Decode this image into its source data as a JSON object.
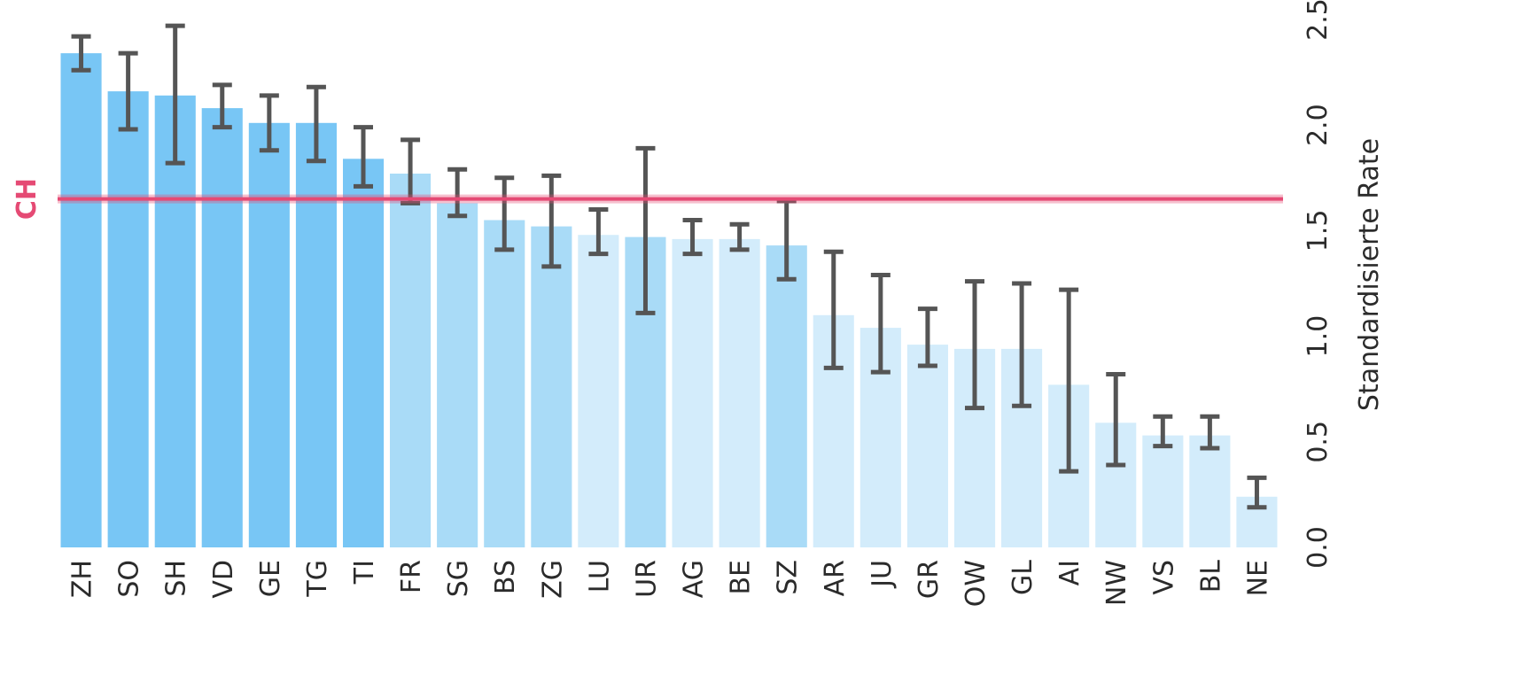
{
  "chart_data": {
    "type": "bar",
    "ylabel": "Standardisierte Rate",
    "ylim": [
      0,
      2.5
    ],
    "yticks": [
      "0.0",
      "0.5",
      "1.0",
      "1.5",
      "2.0",
      "2.5"
    ],
    "y_axis_position": "right",
    "categories": [
      "ZH",
      "SO",
      "SH",
      "VD",
      "GE",
      "TG",
      "TI",
      "FR",
      "SG",
      "BS",
      "ZG",
      "LU",
      "UR",
      "AG",
      "BE",
      "SZ",
      "AR",
      "JU",
      "GR",
      "OW",
      "GL",
      "AI",
      "NW",
      "VS",
      "BL",
      "NE"
    ],
    "values": [
      2.34,
      2.16,
      2.14,
      2.08,
      2.01,
      2.01,
      1.84,
      1.77,
      1.63,
      1.55,
      1.52,
      1.48,
      1.47,
      1.46,
      1.46,
      1.43,
      1.1,
      1.04,
      0.96,
      0.94,
      0.94,
      0.77,
      0.59,
      0.53,
      0.53,
      0.24
    ],
    "error_low": [
      2.26,
      1.98,
      1.82,
      1.99,
      1.88,
      1.83,
      1.71,
      1.63,
      1.57,
      1.41,
      1.33,
      1.39,
      1.11,
      1.39,
      1.41,
      1.27,
      0.85,
      0.83,
      0.86,
      0.66,
      0.67,
      0.36,
      0.39,
      0.48,
      0.47,
      0.19
    ],
    "error_high": [
      2.42,
      2.34,
      2.47,
      2.19,
      2.14,
      2.18,
      1.99,
      1.93,
      1.79,
      1.75,
      1.76,
      1.6,
      1.89,
      1.55,
      1.53,
      1.64,
      1.4,
      1.29,
      1.13,
      1.26,
      1.25,
      1.22,
      0.82,
      0.62,
      0.62,
      0.33
    ],
    "bar_shade": [
      "dark",
      "dark",
      "dark",
      "dark",
      "dark",
      "dark",
      "dark",
      "medium",
      "medium",
      "medium",
      "medium",
      "light",
      "medium",
      "light",
      "light",
      "medium",
      "light",
      "light",
      "light",
      "light",
      "light",
      "light",
      "light",
      "light",
      "light",
      "light"
    ],
    "reference_line": {
      "label": "CH",
      "value": 1.65
    },
    "colors": {
      "dark": "#78c6f5",
      "medium": "#a9dbf7",
      "light": "#d3ecfb",
      "error_bar": "#555555",
      "reference": "#e54a74"
    }
  }
}
